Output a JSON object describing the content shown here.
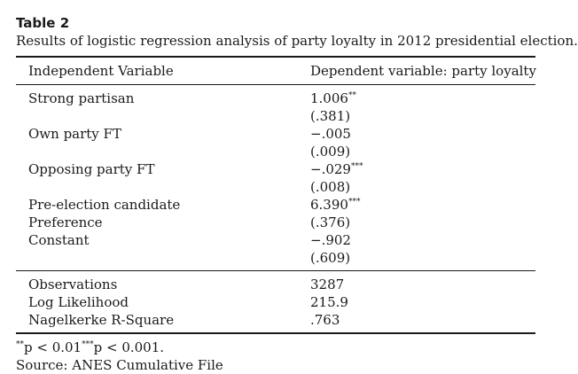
{
  "table": {
    "label": "Table 2",
    "caption": "Results of logistic regression analysis of party loyalty in 2012 presidential election.",
    "header": {
      "col1": "Independent Variable",
      "col2": "Dependent variable: party loyalty"
    },
    "rows": [
      {
        "var": "Strong partisan",
        "coef": "1.006",
        "stars": "**"
      },
      {
        "var": "",
        "coef": "(.381)",
        "stars": ""
      },
      {
        "var": "Own party FT",
        "coef": "−.005",
        "stars": ""
      },
      {
        "var": "",
        "coef": "(.009)",
        "stars": ""
      },
      {
        "var": "Opposing party FT",
        "coef": "−.029",
        "stars": "***"
      },
      {
        "var": "",
        "coef": "(.008)",
        "stars": ""
      },
      {
        "var": "Pre-election candidate",
        "coef": "6.390",
        "stars": "***"
      },
      {
        "var": "Preference",
        "coef": "(.376)",
        "stars": ""
      },
      {
        "var": "Constant",
        "coef": "−.902",
        "stars": ""
      },
      {
        "var": "",
        "coef": "(.609)",
        "stars": ""
      }
    ],
    "stats": [
      {
        "label": "Observations",
        "value": "3287"
      },
      {
        "label": "Log Likelihood",
        "value": "215.9"
      },
      {
        "label": "Nagelkerke R-Square",
        "value": ".763"
      }
    ],
    "footnote": {
      "sup1": "**",
      "text1": "p < 0.01",
      "sup2": "***",
      "text2": "p < 0.001."
    },
    "source": "Source: ANES Cumulative File"
  }
}
